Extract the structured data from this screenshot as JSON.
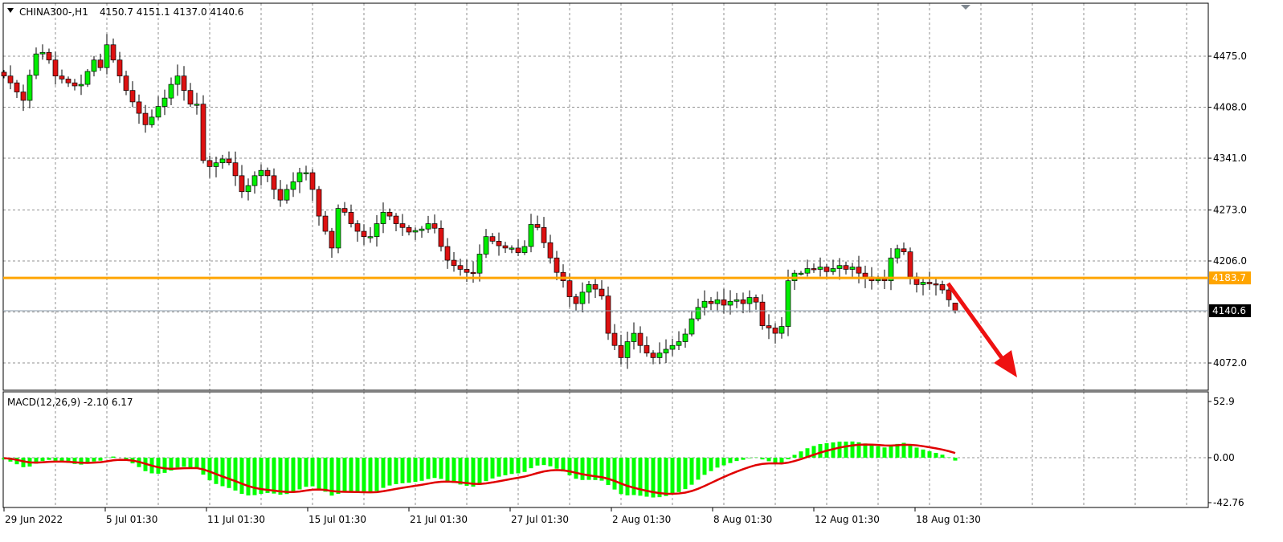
{
  "header": {
    "symbol": "CHINA300-,H1",
    "ohlc_text": "4150.7 4151.1 4137.0 4140.6"
  },
  "macd_label": "MACD(12,26,9) -2.10 6.17",
  "colors": {
    "bull": "#00ee00",
    "bear": "#dd1111",
    "level_line": "#ffa500",
    "macd_hist": "#00ff00",
    "signal": "#e00000",
    "arrow": "#ee1111",
    "grid": "#909090"
  },
  "price_axis": {
    "ticks": [
      "4475.0",
      "4408.0",
      "4341.0",
      "4273.0",
      "4206.0",
      "4072.0"
    ],
    "range": [
      4055,
      4520
    ]
  },
  "level_line": {
    "value": 4183.7,
    "label": "4183.7"
  },
  "current_price": {
    "value": 4140.6,
    "label": "4140.6"
  },
  "macd_axis": {
    "ticks": [
      "52.9",
      "0.00",
      "-42.76"
    ],
    "range": [
      -47,
      56
    ]
  },
  "time_axis": {
    "labels": [
      "29 Jun 2022",
      "5 Jul 01:30",
      "11 Jul 01:30",
      "15 Jul 01:30",
      "21 Jul 01:30",
      "27 Jul 01:30",
      "2 Aug 01:30",
      "8 Aug 01:30",
      "12 Aug 01:30",
      "18 Aug 01:30"
    ]
  },
  "chart_data": {
    "type": "candlestick",
    "timeframe": "H1",
    "indicator": "MACD(12,26,9)",
    "closes": [
      4449,
      4440,
      4428,
      4417,
      4450,
      4478,
      4480,
      4470,
      4449,
      4445,
      4440,
      4436,
      4438,
      4455,
      4470,
      4460,
      4490,
      4470,
      4449,
      4430,
      4415,
      4400,
      4385,
      4395,
      4409,
      4420,
      4438,
      4449,
      4430,
      4412,
      4412,
      4338,
      4330,
      4335,
      4340,
      4335,
      4318,
      4297,
      4305,
      4318,
      4325,
      4318,
      4300,
      4286,
      4300,
      4310,
      4322,
      4322,
      4300,
      4265,
      4245,
      4223,
      4275,
      4270,
      4255,
      4245,
      4238,
      4238,
      4255,
      4270,
      4265,
      4255,
      4250,
      4244,
      4246,
      4248,
      4255,
      4249,
      4225,
      4207,
      4200,
      4195,
      4191,
      4190,
      4215,
      4238,
      4232,
      4226,
      4223,
      4223,
      4217,
      4225,
      4254,
      4250,
      4230,
      4210,
      4191,
      4180,
      4159,
      4150,
      4165,
      4175,
      4169,
      4160,
      4111,
      4095,
      4079,
      4100,
      4111,
      4095,
      4085,
      4079,
      4085,
      4090,
      4095,
      4100,
      4110,
      4130,
      4145,
      4153,
      4150,
      4155,
      4148,
      4153,
      4155,
      4150,
      4158,
      4152,
      4121,
      4118,
      4111,
      4120,
      4180,
      4190,
      4190,
      4196,
      4195,
      4198,
      4192,
      4196,
      4200,
      4195,
      4198,
      4190,
      4185,
      4180,
      4182,
      4180,
      4210,
      4222,
      4218,
      4185,
      4175,
      4178,
      4176,
      4175,
      4168,
      4155,
      4140.6
    ]
  }
}
